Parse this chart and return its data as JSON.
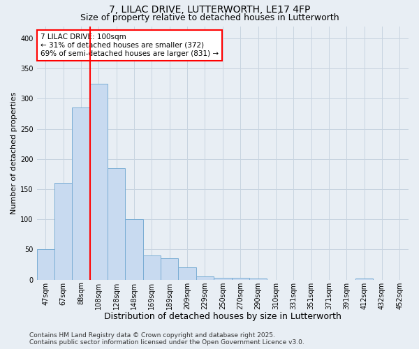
{
  "title_line1": "7, LILAC DRIVE, LUTTERWORTH, LE17 4FP",
  "title_line2": "Size of property relative to detached houses in Lutterworth",
  "xlabel": "Distribution of detached houses by size in Lutterworth",
  "ylabel": "Number of detached properties",
  "categories": [
    "47sqm",
    "67sqm",
    "88sqm",
    "108sqm",
    "128sqm",
    "148sqm",
    "169sqm",
    "189sqm",
    "209sqm",
    "229sqm",
    "250sqm",
    "270sqm",
    "290sqm",
    "310sqm",
    "331sqm",
    "351sqm",
    "371sqm",
    "391sqm",
    "412sqm",
    "432sqm",
    "452sqm"
  ],
  "values": [
    50,
    160,
    285,
    325,
    185,
    100,
    40,
    35,
    20,
    5,
    3,
    3,
    2,
    0,
    0,
    0,
    0,
    0,
    2,
    0,
    0
  ],
  "bar_color": "#c8daf0",
  "bar_edge_color": "#7aadd4",
  "vline_color": "red",
  "vline_pos": 2.5,
  "annotation_text": "7 LILAC DRIVE: 100sqm\n← 31% of detached houses are smaller (372)\n69% of semi-detached houses are larger (831) →",
  "annotation_box_color": "white",
  "annotation_box_edge_color": "red",
  "ylim": [
    0,
    420
  ],
  "yticks": [
    0,
    50,
    100,
    150,
    200,
    250,
    300,
    350,
    400
  ],
  "grid_color": "#c8d4e0",
  "background_color": "#e8eef4",
  "footer_line1": "Contains HM Land Registry data © Crown copyright and database right 2025.",
  "footer_line2": "Contains public sector information licensed under the Open Government Licence v3.0.",
  "title_fontsize": 10,
  "subtitle_fontsize": 9,
  "xlabel_fontsize": 9,
  "ylabel_fontsize": 8,
  "tick_fontsize": 7,
  "annotation_fontsize": 7.5,
  "footer_fontsize": 6.5
}
